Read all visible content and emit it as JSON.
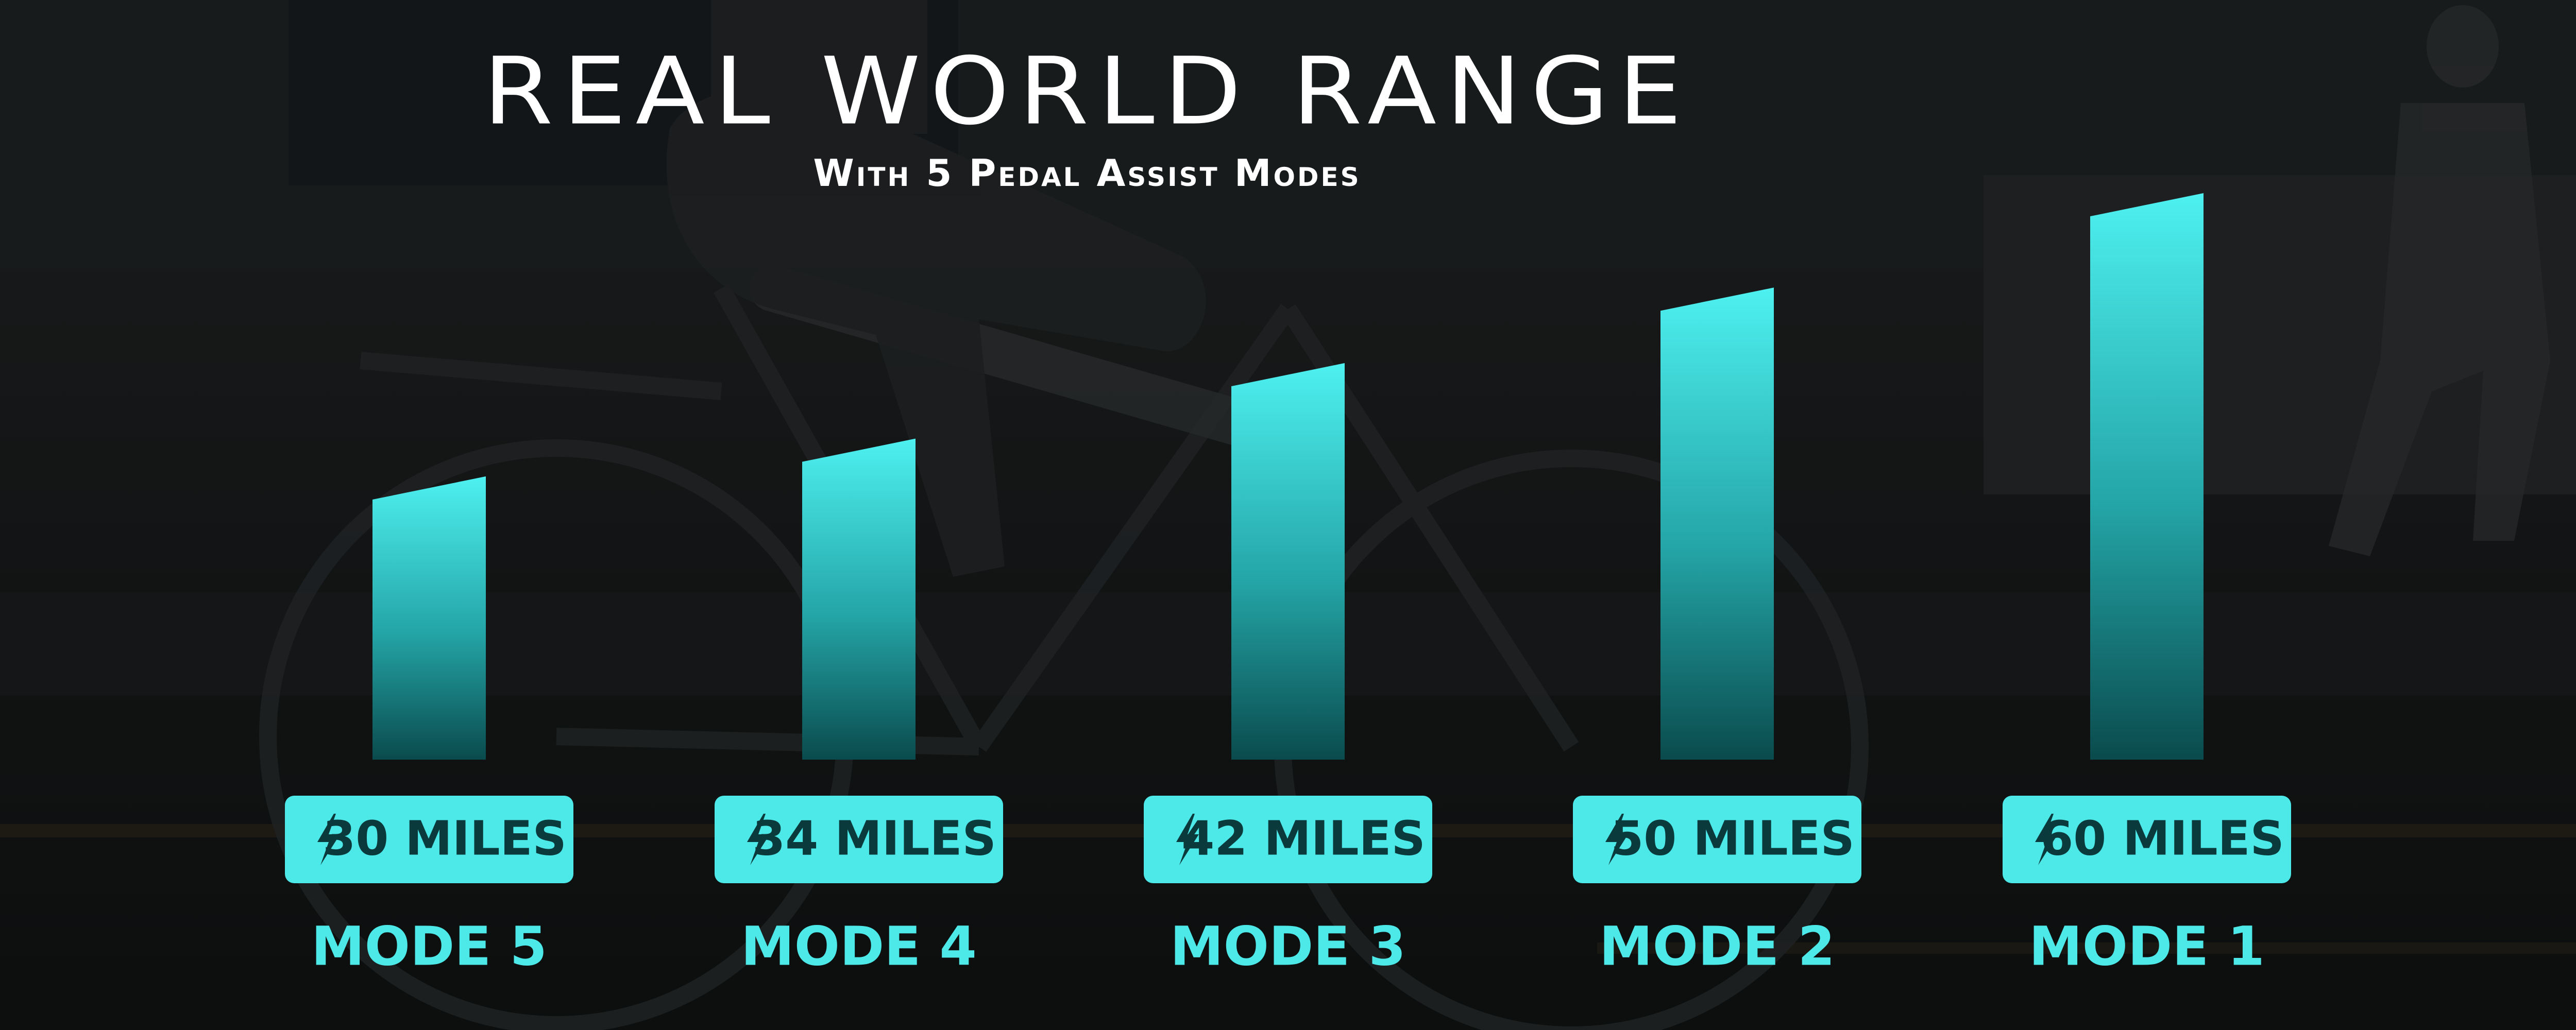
{
  "header": {
    "title": "REAL WORLD RANGE",
    "subtitle": "With 5 Pedal Assist Modes"
  },
  "colors": {
    "accent": "#4de8e8",
    "bar_top": "#4ef0f0",
    "bar_bottom": "#0a4b4d",
    "badge_text": "#0b3a3c",
    "background": "#1b1d1e"
  },
  "chart_data": {
    "type": "bar",
    "categories": [
      "MODE 5",
      "MODE 4",
      "MODE 3",
      "MODE 2",
      "MODE 1"
    ],
    "values": [
      30,
      34,
      42,
      50,
      60
    ],
    "unit": "MILES",
    "data_labels": [
      "30 MILES",
      "34 MILES",
      "42 MILES",
      "50 MILES",
      "60 MILES"
    ],
    "title": "REAL WORLD RANGE",
    "subtitle": "With 5 Pedal Assist Modes",
    "badge_icon": "lightning-bolt-icon",
    "grid": false,
    "legend": "none"
  }
}
